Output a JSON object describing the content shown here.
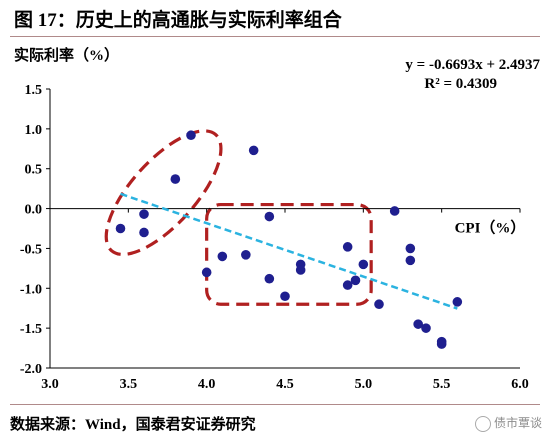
{
  "title": "图 17：历史上的高通胀与实际利率组合",
  "source": "数据来源：Wind，国泰君安证券研究",
  "watermark": "债市覃谈",
  "chart_data": {
    "type": "scatter",
    "title": "图 17：历史上的高通胀与实际利率组合",
    "xlabel": "CPI（%）",
    "ylabel": "实际利率（%）",
    "xlim": [
      3.0,
      6.0
    ],
    "ylim": [
      -2.0,
      1.5
    ],
    "x_ticks": [
      "3.0",
      "3.5",
      "4.0",
      "4.5",
      "5.0",
      "5.5",
      "6.0"
    ],
    "y_ticks": [
      "1.5",
      "1.0",
      "0.5",
      "0.0",
      "-0.5",
      "-1.0",
      "-1.5",
      "-2.0"
    ],
    "x_tick_values": [
      3.0,
      3.5,
      4.0,
      4.5,
      5.0,
      5.5,
      6.0
    ],
    "y_tick_values": [
      1.5,
      1.0,
      0.5,
      0.0,
      -0.5,
      -1.0,
      -1.5,
      -2.0
    ],
    "grid": false,
    "point_color": "#1f1f8f",
    "trendline_color": "#2bb3e0",
    "highlight_color": "#b02020",
    "points": [
      {
        "x": 3.45,
        "y": -0.25
      },
      {
        "x": 3.6,
        "y": -0.07
      },
      {
        "x": 3.6,
        "y": -0.3
      },
      {
        "x": 3.8,
        "y": 0.37
      },
      {
        "x": 3.9,
        "y": 0.92
      },
      {
        "x": 4.0,
        "y": -0.8
      },
      {
        "x": 4.1,
        "y": -0.6
      },
      {
        "x": 4.25,
        "y": -0.58
      },
      {
        "x": 4.3,
        "y": 0.73
      },
      {
        "x": 4.4,
        "y": -0.1
      },
      {
        "x": 4.4,
        "y": -0.88
      },
      {
        "x": 4.5,
        "y": -1.1
      },
      {
        "x": 4.6,
        "y": -0.7
      },
      {
        "x": 4.6,
        "y": -0.77
      },
      {
        "x": 4.9,
        "y": -0.48
      },
      {
        "x": 4.9,
        "y": -0.96
      },
      {
        "x": 4.95,
        "y": -0.9
      },
      {
        "x": 5.0,
        "y": -0.7
      },
      {
        "x": 5.1,
        "y": -1.2
      },
      {
        "x": 5.2,
        "y": -0.03
      },
      {
        "x": 5.3,
        "y": -0.5
      },
      {
        "x": 5.3,
        "y": -0.65
      },
      {
        "x": 5.35,
        "y": -1.45
      },
      {
        "x": 5.4,
        "y": -1.5
      },
      {
        "x": 5.5,
        "y": -1.7
      },
      {
        "x": 5.5,
        "y": -1.67
      },
      {
        "x": 5.6,
        "y": -1.17
      }
    ],
    "trendline": {
      "slope": -0.6693,
      "intercept": 2.4937,
      "x_range": [
        3.45,
        5.6
      ],
      "equation_label": "y = -0.6693x + 2.4937",
      "r2_label": "R² = 0.4309"
    },
    "highlight_regions": [
      {
        "shape": "ellipse",
        "x_range": [
          3.4,
          4.05
        ],
        "y_range": [
          -0.65,
          1.05
        ]
      },
      {
        "shape": "rounded-rect",
        "x_range": [
          4.0,
          5.05
        ],
        "y_range": [
          -1.2,
          0.05
        ]
      }
    ]
  }
}
